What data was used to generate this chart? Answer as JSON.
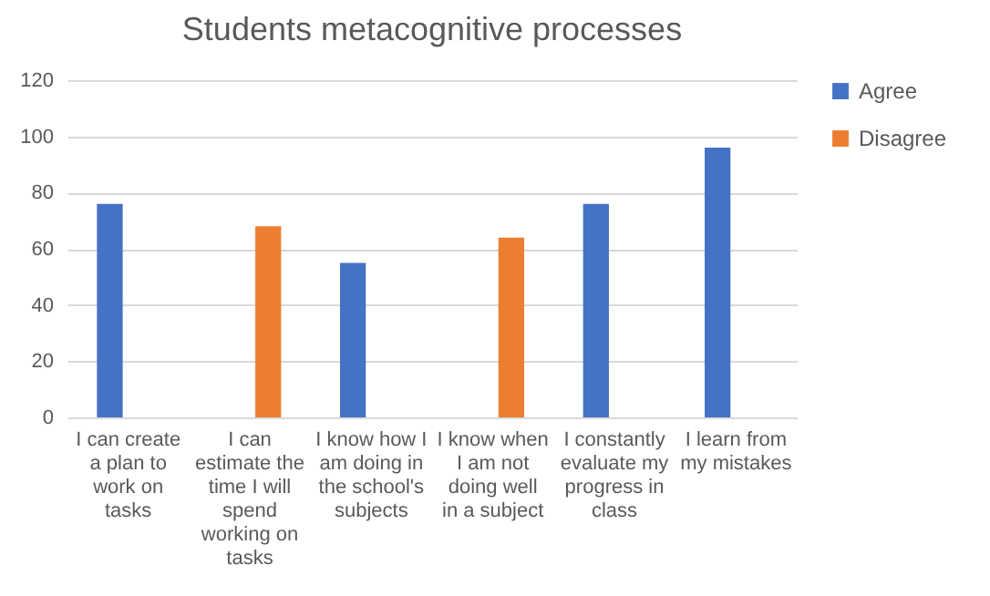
{
  "chart_data": {
    "type": "bar",
    "title": "Students metacognitive processes",
    "categories": [
      "I can create a plan to work on tasks",
      "I can estimate the time I will spend working on tasks",
      "I know how I am doing in the school's subjects",
      "I know when I am not doing well in a subject",
      "I constantly evaluate my progress in class",
      "I learn from my mistakes"
    ],
    "series": [
      {
        "name": "Agree",
        "color": "#4472c4",
        "values": [
          76,
          null,
          55,
          null,
          76,
          96
        ]
      },
      {
        "name": "Disagree",
        "color": "#ed7d31",
        "values": [
          null,
          68,
          null,
          64,
          null,
          null
        ]
      }
    ],
    "ylim": [
      0,
      120
    ],
    "yticks": [
      0,
      20,
      40,
      60,
      80,
      100,
      120
    ],
    "grid": "y",
    "legend": "right"
  }
}
